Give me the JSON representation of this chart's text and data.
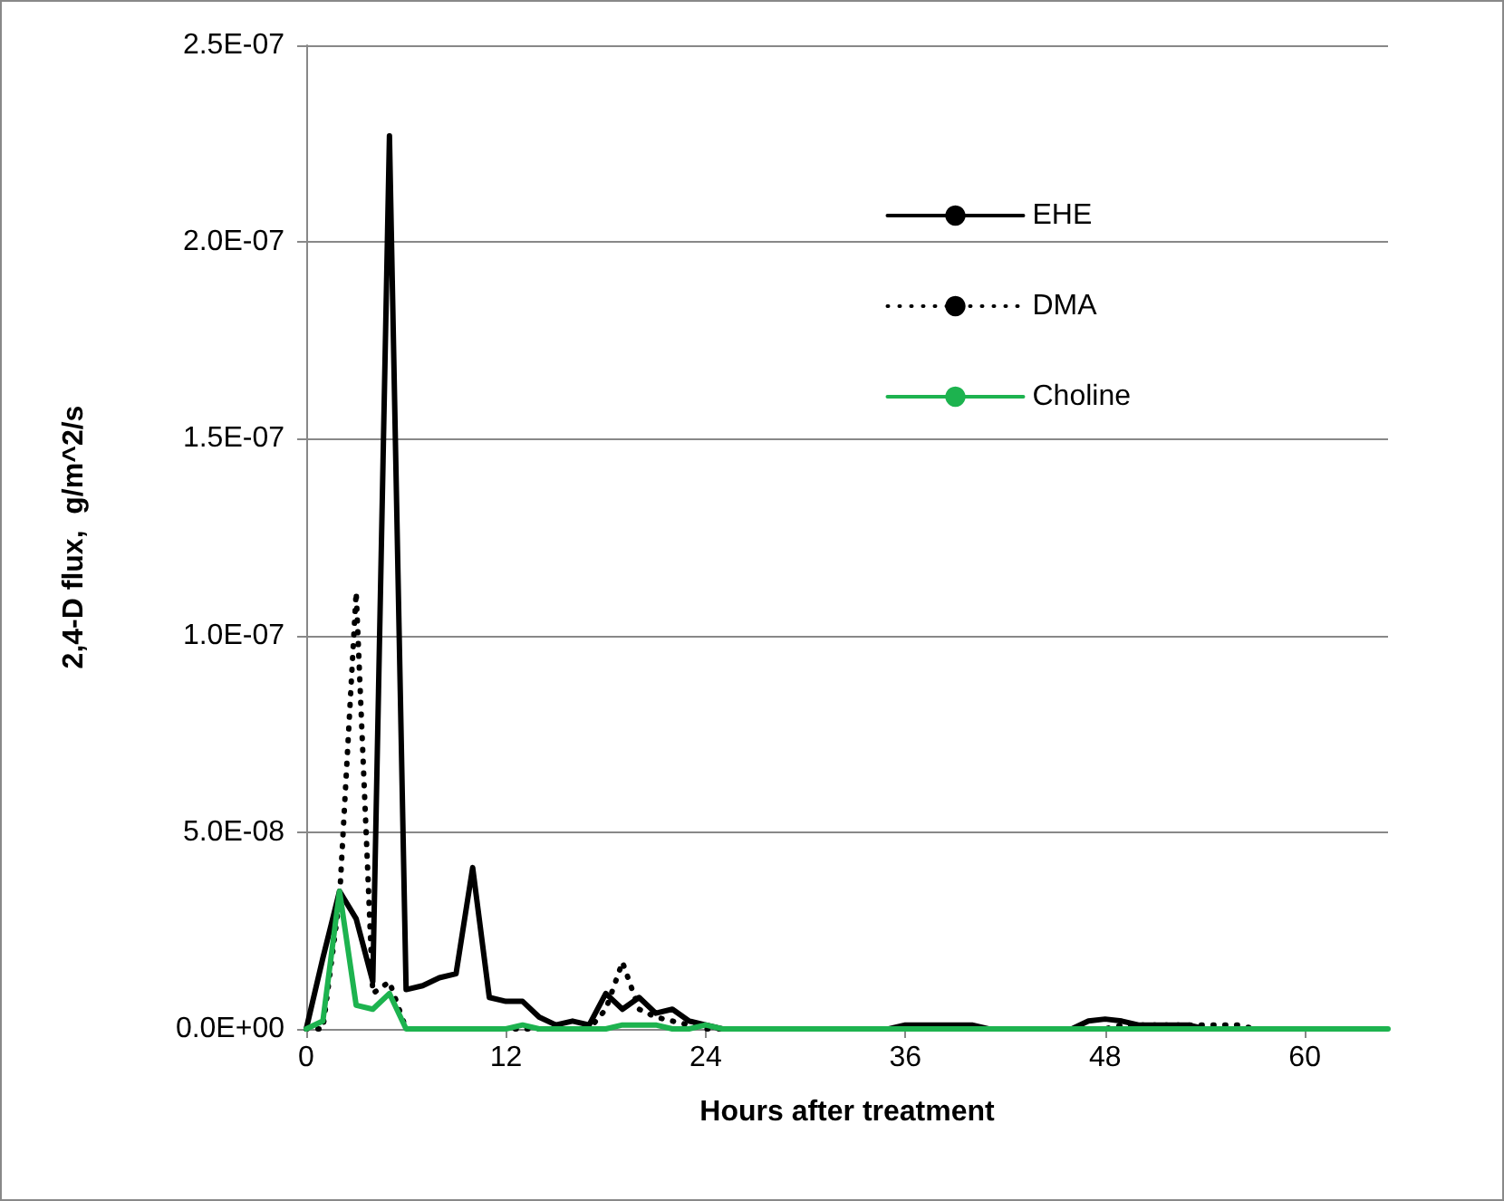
{
  "chart_data": {
    "type": "line",
    "xlabel": "Hours after treatment",
    "ylabel": "2,4-D flux,  g/m^2/s",
    "x": [
      0,
      1,
      2,
      3,
      4,
      5,
      6,
      7,
      8,
      9,
      10,
      11,
      12,
      13,
      14,
      15,
      16,
      17,
      18,
      19,
      20,
      21,
      22,
      23,
      24,
      25,
      26,
      27,
      28,
      29,
      30,
      31,
      32,
      33,
      34,
      35,
      36,
      37,
      38,
      39,
      40,
      41,
      42,
      43,
      44,
      45,
      46,
      47,
      48,
      49,
      50,
      51,
      52,
      53,
      54,
      55,
      56,
      57,
      58,
      59,
      60,
      61,
      62,
      63,
      64,
      65
    ],
    "series": [
      {
        "name": "EHE",
        "color": "#000000",
        "line_style": "solid",
        "values": [
          0,
          1.8e-08,
          3.5e-08,
          2.8e-08,
          1.2e-08,
          2.27e-07,
          1e-08,
          1.1e-08,
          1.3e-08,
          1.4e-08,
          4.1e-08,
          8e-09,
          7e-09,
          7e-09,
          3e-09,
          1e-09,
          2e-09,
          1e-09,
          9e-09,
          5e-09,
          8e-09,
          4e-09,
          5e-09,
          2e-09,
          1e-09,
          0,
          0,
          0,
          0,
          0,
          0,
          0,
          0,
          0,
          0,
          0,
          1e-09,
          1e-09,
          1e-09,
          1e-09,
          1e-09,
          0,
          0,
          0,
          0,
          0,
          0,
          2e-09,
          2.5e-09,
          2e-09,
          1e-09,
          1e-09,
          1e-09,
          1e-09,
          0,
          0,
          0,
          0,
          0,
          0,
          0,
          0,
          null,
          null,
          null,
          null
        ]
      },
      {
        "name": "DMA",
        "color": "#000000",
        "line_style": "dotted",
        "values": [
          0,
          0,
          3.3e-08,
          1.11e-07,
          9e-09,
          1.2e-08,
          0,
          0,
          0,
          0,
          0,
          0,
          0,
          0,
          0,
          0,
          0,
          0,
          5e-09,
          1.7e-08,
          5e-09,
          3e-09,
          2e-09,
          1e-09,
          0,
          0,
          0,
          0,
          0,
          0,
          0,
          0,
          0,
          0,
          0,
          0,
          0,
          0,
          0,
          0,
          0,
          0,
          0,
          0,
          0,
          0,
          0,
          0,
          0,
          1e-09,
          1e-09,
          1e-09,
          1e-09,
          1e-09,
          1e-09,
          1e-09,
          1e-09,
          0,
          0,
          0,
          0,
          0,
          0,
          null,
          null,
          null
        ]
      },
      {
        "name": "Choline",
        "color": "#1db34f",
        "line_style": "solid",
        "values": [
          0,
          2e-09,
          3.5e-08,
          6e-09,
          5e-09,
          9e-09,
          0,
          0,
          0,
          0,
          0,
          0,
          0,
          1e-09,
          0,
          0,
          0,
          0,
          0,
          1e-09,
          1e-09,
          1e-09,
          0,
          0,
          1e-09,
          0,
          0,
          0,
          0,
          0,
          0,
          0,
          0,
          0,
          0,
          0,
          0,
          0,
          0,
          0,
          0,
          0,
          0,
          0,
          0,
          0,
          0,
          0,
          0,
          0,
          0,
          0,
          0,
          0,
          0,
          0,
          0,
          0,
          0,
          0,
          0,
          0,
          0,
          0,
          0,
          0
        ]
      }
    ],
    "xlim": [
      0,
      65
    ],
    "xticks": [
      0,
      12,
      24,
      36,
      48,
      60
    ],
    "ylim": [
      0,
      2.5e-07
    ],
    "yticks": [
      {
        "value": 0,
        "label": "0.0E+00"
      },
      {
        "value": 5e-08,
        "label": "5.0E-08"
      },
      {
        "value": 1e-07,
        "label": "1.0E-07"
      },
      {
        "value": 1.5e-07,
        "label": "1.5E-07"
      },
      {
        "value": 2e-07,
        "label": "2.0E-07"
      },
      {
        "value": 2.5e-07,
        "label": "2.5E-07"
      }
    ],
    "grid": "y",
    "legend": "top right",
    "marker": "none"
  }
}
